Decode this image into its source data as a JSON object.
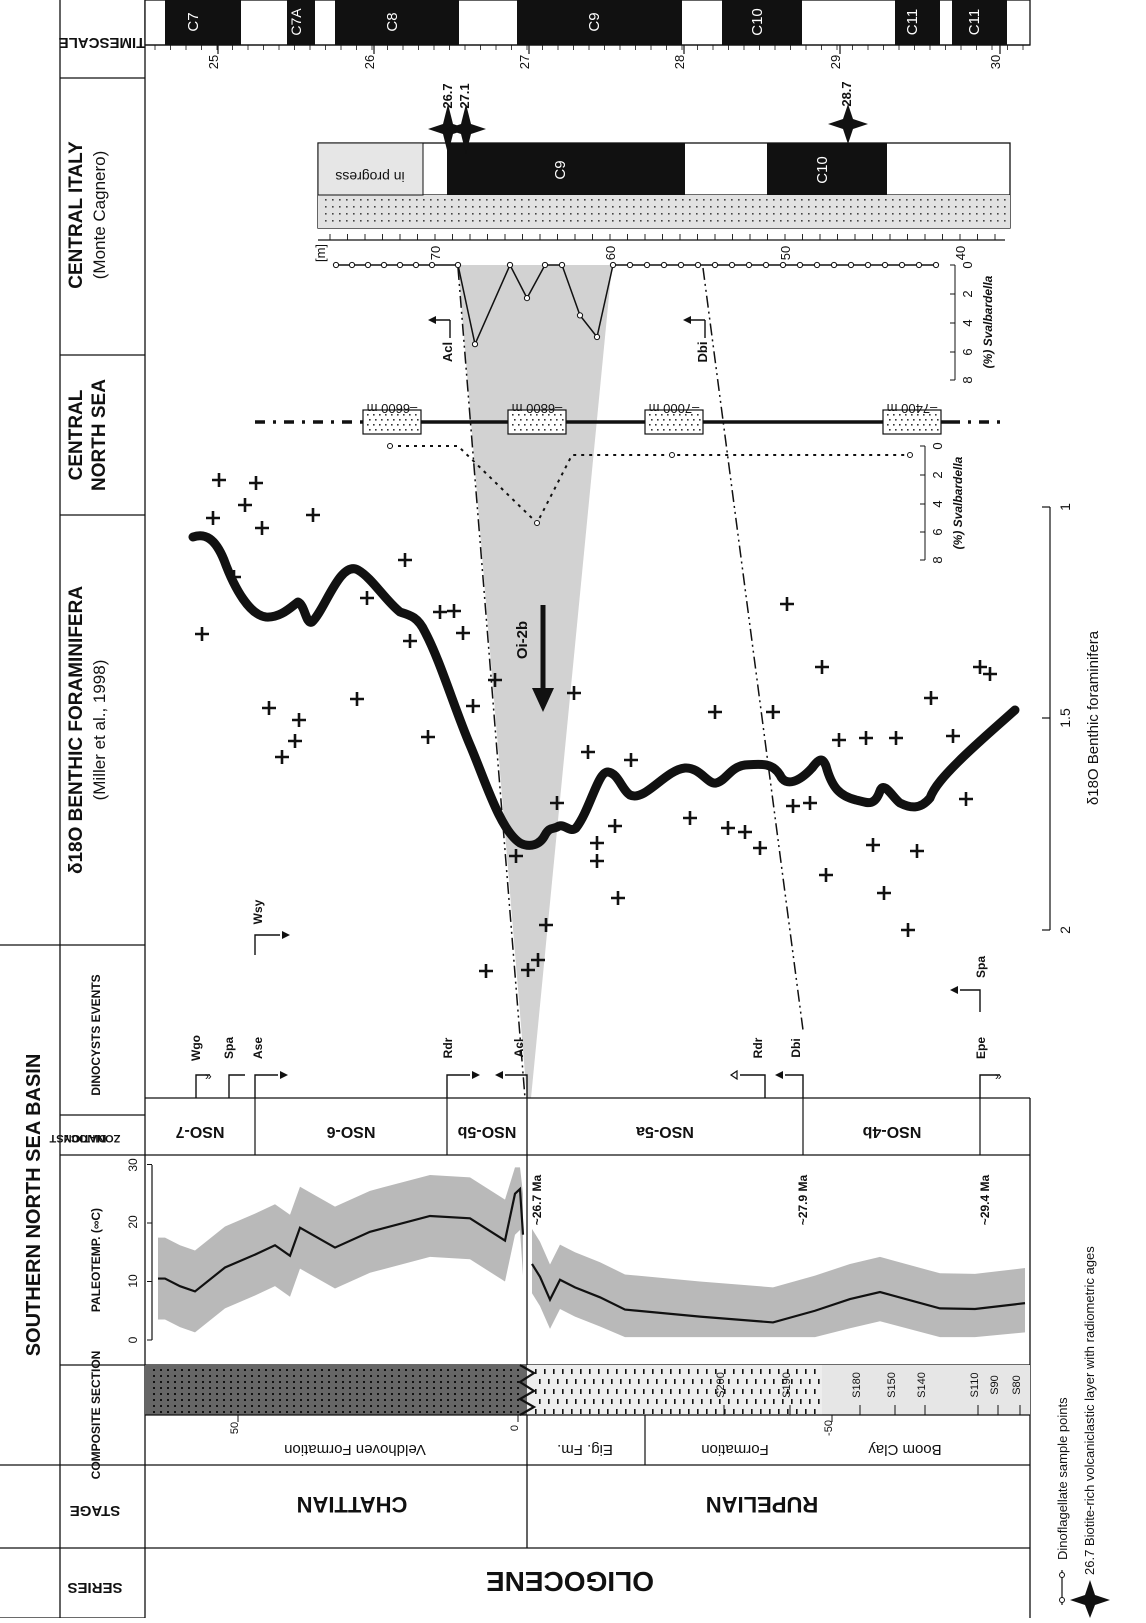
{
  "headers": {
    "timescale": "TIMESCALE",
    "central_italy_title": "CENTRAL ITALY",
    "central_italy_sub": "(Monte Cagnero)",
    "central_north_sea_1": "CENTRAL",
    "central_north_sea_2": "NORTH SEA",
    "benthic_title": "δ18O BENTHIC FORAMINIFERA",
    "benthic_sub": "(Miller et al., 1998)",
    "southern_nsb": "SOUTHERN NORTH SEA BASIN",
    "dinocyst_events": "DINOCYSTS EVENTS",
    "dinocyst_zonation_1": "DINOCYST",
    "dinocyst_zonation_2": "ZONATION",
    "paleotemp": "PALEOTEMP. (∞C)",
    "composite_section": "COMPOSITE SECTION",
    "stage": "STAGE",
    "series": "SERIES"
  },
  "timescale": {
    "chrons": [
      "C7",
      "C7A",
      "C8",
      "C9",
      "C10",
      "C11",
      "C11"
    ],
    "ticks": [
      "25",
      "26",
      "27",
      "28",
      "29",
      "30"
    ]
  },
  "central_italy": {
    "m_label": "[m]",
    "depth_ticks": [
      "70",
      "60",
      "50",
      "40"
    ],
    "polarity_labels": [
      "in progress",
      "C9",
      "C10"
    ],
    "ages": [
      "26.7",
      "27.1",
      "28.7"
    ],
    "svalbardella_ticks": [
      "0",
      "2",
      "4",
      "6",
      "8"
    ],
    "svalbardella_label": "(%) Svalbardella",
    "events": [
      "Acl",
      "Dbi"
    ]
  },
  "central_north_sea": {
    "depths": [
      "–6600 m",
      "–6800 m",
      "–7000 m",
      "–7400 m"
    ],
    "svalbardella_ticks": [
      "0",
      "2",
      "4",
      "6",
      "8"
    ],
    "svalbardella_label": "(%) Svalbardella"
  },
  "benthic": {
    "event_label": "Oi-2b",
    "axis_ticks": [
      "1",
      "1.5",
      "2"
    ],
    "axis_label": "δ18O  Benthic foraminifera"
  },
  "paleotemp": {
    "ticks": [
      "0",
      "10",
      "20",
      "30"
    ],
    "ages": [
      "~26.7 Ma",
      "~27.9 Ma",
      "~29.4 Ma"
    ]
  },
  "zonation": [
    "NSO-7",
    "NSO-6",
    "NSO-5b",
    "NSO-5a",
    "NSO-4b"
  ],
  "dinocyst_events": [
    "Wgo",
    "Spa",
    "Ase",
    "Wsy",
    "Rdr",
    "Acl",
    "Rdr",
    "Dbi",
    "Epe",
    "Spa"
  ],
  "composite": {
    "ticks": [
      "50",
      "0",
      "-50"
    ],
    "formations": [
      "Veldhoven Formation",
      "Eig. Fm.",
      "Boom Clay",
      "Formation"
    ],
    "samples": [
      "S200",
      "S190",
      "S180",
      "S150",
      "S140",
      "S110",
      "S90",
      "S80"
    ]
  },
  "stages": [
    "CHATTIAN",
    "RUPELIAN"
  ],
  "series_name": "OLIGOCENE",
  "legend": {
    "dinoflagellate": "Dinoflagellate sample points",
    "biotite": "26.7 Biotite-rich volcaniclastic layer with radiometric ages"
  }
}
